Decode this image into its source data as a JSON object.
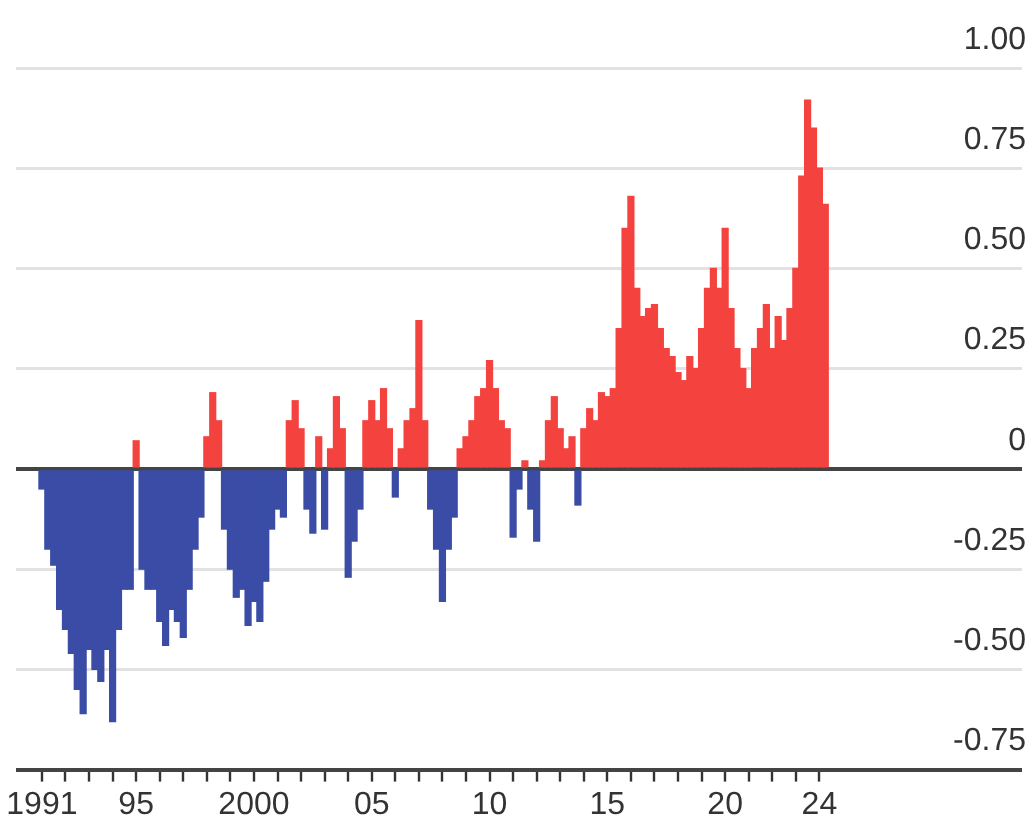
{
  "chart_data": {
    "type": "bar",
    "x": [
      1991,
      1991.25,
      1991.5,
      1991.75,
      1992,
      1992.25,
      1992.5,
      1992.75,
      1993,
      1993.25,
      1993.5,
      1993.75,
      1994,
      1994.25,
      1994.5,
      1994.75,
      1995,
      1995.25,
      1995.5,
      1995.75,
      1996,
      1996.25,
      1996.5,
      1996.75,
      1997,
      1997.25,
      1997.5,
      1997.75,
      1998,
      1998.25,
      1998.5,
      1998.75,
      1999,
      1999.25,
      1999.5,
      1999.75,
      2000,
      2000.25,
      2000.5,
      2000.75,
      2001,
      2001.25,
      2001.5,
      2001.75,
      2002,
      2002.25,
      2002.5,
      2002.75,
      2003,
      2003.25,
      2003.5,
      2003.75,
      2004,
      2004.25,
      2004.5,
      2004.75,
      2005,
      2005.25,
      2005.5,
      2005.75,
      2006,
      2006.25,
      2006.5,
      2006.75,
      2007,
      2007.25,
      2007.5,
      2007.75,
      2008,
      2008.25,
      2008.5,
      2008.75,
      2009,
      2009.25,
      2009.5,
      2009.75,
      2010,
      2010.25,
      2010.5,
      2010.75,
      2011,
      2011.25,
      2011.5,
      2011.75,
      2012,
      2012.25,
      2012.5,
      2012.75,
      2013,
      2013.25,
      2013.5,
      2013.75,
      2014,
      2014.25,
      2014.5,
      2014.75,
      2015,
      2015.25,
      2015.5,
      2015.75,
      2016,
      2016.25,
      2016.5,
      2016.75,
      2017,
      2017.25,
      2017.5,
      2017.75,
      2018,
      2018.25,
      2018.5,
      2018.75,
      2019,
      2019.25,
      2019.5,
      2019.75,
      2020,
      2020.25,
      2020.5,
      2020.75,
      2021,
      2021.25,
      2021.5,
      2021.75,
      2022,
      2022.25,
      2022.5,
      2022.75,
      2023,
      2023.25,
      2023.5,
      2023.75,
      2024,
      2024.25
    ],
    "values": [
      -0.05,
      -0.2,
      -0.24,
      -0.35,
      -0.4,
      -0.46,
      -0.55,
      -0.61,
      -0.45,
      -0.5,
      -0.53,
      -0.45,
      -0.63,
      -0.4,
      -0.3,
      -0.3,
      0.07,
      -0.25,
      -0.3,
      -0.3,
      -0.38,
      -0.44,
      -0.35,
      -0.38,
      -0.42,
      -0.3,
      -0.2,
      -0.12,
      0.08,
      0.19,
      0.12,
      -0.15,
      -0.25,
      -0.32,
      -0.3,
      -0.39,
      -0.33,
      -0.38,
      -0.28,
      -0.15,
      -0.1,
      -0.12,
      0.12,
      0.17,
      0.1,
      -0.1,
      -0.16,
      0.08,
      -0.15,
      0.05,
      0.18,
      0.1,
      -0.27,
      -0.18,
      -0.1,
      0.12,
      0.17,
      0.12,
      0.2,
      0.1,
      -0.07,
      0.05,
      0.12,
      0.15,
      0.37,
      0.12,
      -0.1,
      -0.2,
      -0.33,
      -0.2,
      -0.12,
      0.05,
      0.08,
      0.12,
      0.18,
      0.2,
      0.27,
      0.2,
      0.12,
      0.1,
      -0.17,
      -0.05,
      0.02,
      -0.1,
      -0.18,
      0.02,
      0.12,
      0.18,
      0.1,
      0.05,
      0.08,
      -0.09,
      0.1,
      0.15,
      0.12,
      0.19,
      0.18,
      0.2,
      0.35,
      0.6,
      0.68,
      0.45,
      0.38,
      0.4,
      0.41,
      0.35,
      0.3,
      0.28,
      0.24,
      0.22,
      0.28,
      0.25,
      0.35,
      0.45,
      0.5,
      0.45,
      0.6,
      0.4,
      0.3,
      0.25,
      0.2,
      0.3,
      0.35,
      0.41,
      0.3,
      0.38,
      0.32,
      0.4,
      0.5,
      0.73,
      0.92,
      0.85,
      0.75,
      0.66
    ],
    "colors": [
      "#3a4ca6",
      "#3a4ca6",
      "#3a4ca6",
      "#3a4ca6",
      "#3a4ca6",
      "#3a4ca6",
      "#3a4ca6",
      "#3a4ca6",
      "#3a4ca6",
      "#3a4ca6",
      "#3a4ca6",
      "#3a4ca6",
      "#3a4ca6",
      "#3a4ca6",
      "#3a4ca6",
      "#3a4ca6",
      "#f4433f",
      "#3a4ca6",
      "#3a4ca6",
      "#3a4ca6",
      "#3a4ca6",
      "#3a4ca6",
      "#3a4ca6",
      "#3a4ca6",
      "#3a4ca6",
      "#3a4ca6",
      "#3a4ca6",
      "#3a4ca6",
      "#f4433f",
      "#f4433f",
      "#f4433f",
      "#3a4ca6",
      "#3a4ca6",
      "#3a4ca6",
      "#3a4ca6",
      "#3a4ca6",
      "#3a4ca6",
      "#3a4ca6",
      "#3a4ca6",
      "#3a4ca6",
      "#3a4ca6",
      "#3a4ca6",
      "#f4433f",
      "#f4433f",
      "#f4433f",
      "#3a4ca6",
      "#3a4ca6",
      "#f4433f",
      "#3a4ca6",
      "#f4433f",
      "#f4433f",
      "#f4433f",
      "#3a4ca6",
      "#3a4ca6",
      "#3a4ca6",
      "#f4433f",
      "#f4433f",
      "#f4433f",
      "#f4433f",
      "#f4433f",
      "#3a4ca6",
      "#f4433f",
      "#f4433f",
      "#f4433f",
      "#f4433f",
      "#f4433f",
      "#3a4ca6",
      "#3a4ca6",
      "#3a4ca6",
      "#3a4ca6",
      "#3a4ca6",
      "#f4433f",
      "#f4433f",
      "#f4433f",
      "#f4433f",
      "#f4433f",
      "#f4433f",
      "#f4433f",
      "#f4433f",
      "#f4433f",
      "#3a4ca6",
      "#3a4ca6",
      "#f4433f",
      "#3a4ca6",
      "#3a4ca6",
      "#f4433f",
      "#f4433f",
      "#f4433f",
      "#f4433f",
      "#f4433f",
      "#f4433f",
      "#3a4ca6",
      "#f4433f",
      "#f4433f",
      "#f4433f",
      "#f4433f",
      "#f4433f",
      "#f4433f",
      "#f4433f",
      "#f4433f",
      "#f4433f",
      "#f4433f",
      "#f4433f",
      "#f4433f",
      "#f4433f",
      "#f4433f",
      "#f4433f",
      "#f4433f",
      "#f4433f",
      "#f4433f",
      "#f4433f",
      "#f4433f",
      "#f4433f",
      "#f4433f",
      "#f4433f",
      "#f4433f",
      "#f4433f",
      "#f4433f",
      "#f4433f",
      "#f4433f",
      "#f4433f",
      "#f4433f",
      "#f4433f",
      "#f4433f",
      "#f4433f",
      "#f4433f",
      "#f4433f",
      "#f4433f",
      "#f4433f",
      "#f4433f",
      "#f4433f",
      "#f4433f",
      "#f4433f",
      "#f4433f"
    ],
    "xlim": [
      1989.9,
      2032.6
    ],
    "xticks": [
      {
        "value": 1991,
        "label": "1991"
      },
      {
        "value": 1992,
        "label": null
      },
      {
        "value": 1993,
        "label": null
      },
      {
        "value": 1994,
        "label": null
      },
      {
        "value": 1995,
        "label": "95"
      },
      {
        "value": 1996,
        "label": null
      },
      {
        "value": 1997,
        "label": null
      },
      {
        "value": 1998,
        "label": null
      },
      {
        "value": 1999,
        "label": null
      },
      {
        "value": 2000,
        "label": "2000"
      },
      {
        "value": 2001,
        "label": null
      },
      {
        "value": 2002,
        "label": null
      },
      {
        "value": 2003,
        "label": null
      },
      {
        "value": 2004,
        "label": null
      },
      {
        "value": 2005,
        "label": "05"
      },
      {
        "value": 2006,
        "label": null
      },
      {
        "value": 2007,
        "label": null
      },
      {
        "value": 2008,
        "label": null
      },
      {
        "value": 2009,
        "label": null
      },
      {
        "value": 2010,
        "label": "10"
      },
      {
        "value": 2011,
        "label": null
      },
      {
        "value": 2012,
        "label": null
      },
      {
        "value": 2013,
        "label": null
      },
      {
        "value": 2014,
        "label": null
      },
      {
        "value": 2015,
        "label": "15"
      },
      {
        "value": 2016,
        "label": null
      },
      {
        "value": 2017,
        "label": null
      },
      {
        "value": 2018,
        "label": null
      },
      {
        "value": 2019,
        "label": null
      },
      {
        "value": 2020,
        "label": "20"
      },
      {
        "value": 2021,
        "label": null
      },
      {
        "value": 2022,
        "label": null
      },
      {
        "value": 2023,
        "label": null
      },
      {
        "value": 2024,
        "label": "24"
      }
    ],
    "ylim": [
      -0.75,
      1.0
    ],
    "yticks": [
      {
        "value": -0.75,
        "label": "-0.75"
      },
      {
        "value": -0.5,
        "label": "-0.50"
      },
      {
        "value": -0.25,
        "label": "-0.25"
      },
      0,
      {
        "value": 0.25,
        "label": "0.25"
      },
      {
        "value": 0.5,
        "label": "0.50"
      },
      {
        "value": 0.75,
        "label": "0.75"
      },
      {
        "value": 1,
        "label": "1.00"
      }
    ],
    "grid": "y"
  }
}
